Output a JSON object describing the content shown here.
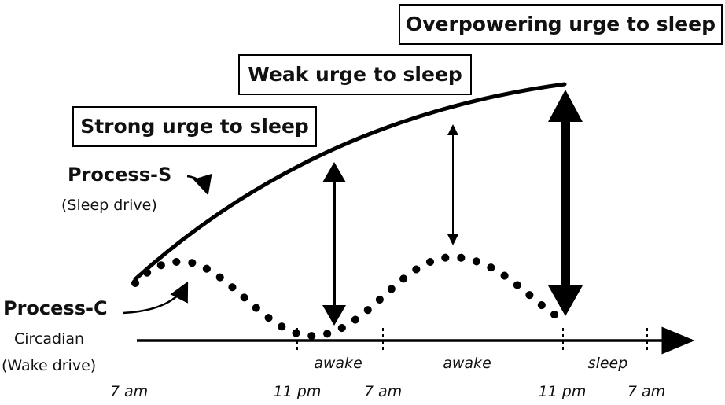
{
  "boxes": {
    "overpowering": "Overpowering urge to sleep",
    "weak": "Weak urge to sleep",
    "strong": "Strong urge to sleep"
  },
  "process_s": {
    "title": "Process-S",
    "subtitle": "(Sleep drive)"
  },
  "process_c": {
    "title": "Process-C",
    "subtitle_1": "Circadian",
    "subtitle_2": "(Wake drive)"
  },
  "time_axis": {
    "ticks": [
      "7 am",
      "11 pm",
      "7 am",
      "11 pm",
      "7 am"
    ],
    "states": [
      "awake",
      "awake",
      "sleep"
    ]
  },
  "colors": {
    "ink": "#000000",
    "background": "#ffffff"
  }
}
